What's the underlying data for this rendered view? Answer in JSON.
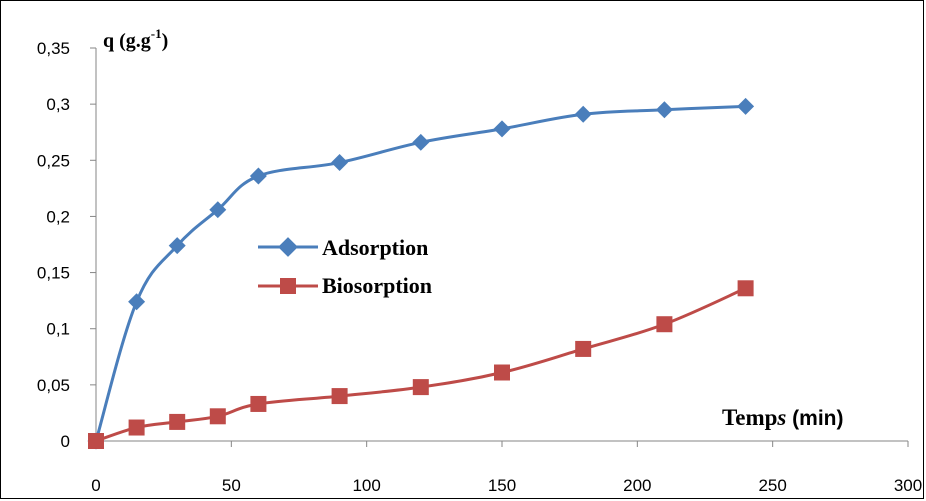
{
  "chart_data": {
    "type": "line",
    "ylabel": {
      "main": "q  (g.g",
      "superscript": "-1",
      "close": ")"
    },
    "xlabel": {
      "main": "Temp",
      "italic": "s",
      "unit": " (min)"
    },
    "xlim": [
      0,
      300
    ],
    "ylim": [
      0,
      0.35
    ],
    "x_ticks": [
      0,
      50,
      100,
      150,
      200,
      250,
      300
    ],
    "y_ticks": [
      0,
      0.05,
      0.1,
      0.15,
      0.2,
      0.25,
      0.3,
      0.35
    ],
    "x_tick_labels": [
      "0",
      "50",
      "100",
      "150",
      "200",
      "250",
      "300"
    ],
    "y_tick_labels": [
      "0",
      "0,05",
      "0,1",
      "0,15",
      "0,2",
      "0,25",
      "0,3",
      "0,35"
    ],
    "grid": false,
    "legend_position": "center-left",
    "series": [
      {
        "name": "Adsorption",
        "color": "#4a7ebb",
        "marker": "diamond",
        "x": [
          0,
          15,
          30,
          45,
          60,
          90,
          120,
          150,
          180,
          210,
          240
        ],
        "y": [
          0,
          0.124,
          0.174,
          0.206,
          0.236,
          0.248,
          0.266,
          0.278,
          0.291,
          0.295,
          0.298
        ]
      },
      {
        "name": "Biosorption",
        "color": "#be4b48",
        "marker": "square",
        "x": [
          0,
          15,
          30,
          45,
          60,
          90,
          120,
          150,
          180,
          210,
          240
        ],
        "y": [
          0,
          0.012,
          0.017,
          0.022,
          0.033,
          0.04,
          0.048,
          0.061,
          0.082,
          0.104,
          0.136
        ]
      }
    ]
  }
}
